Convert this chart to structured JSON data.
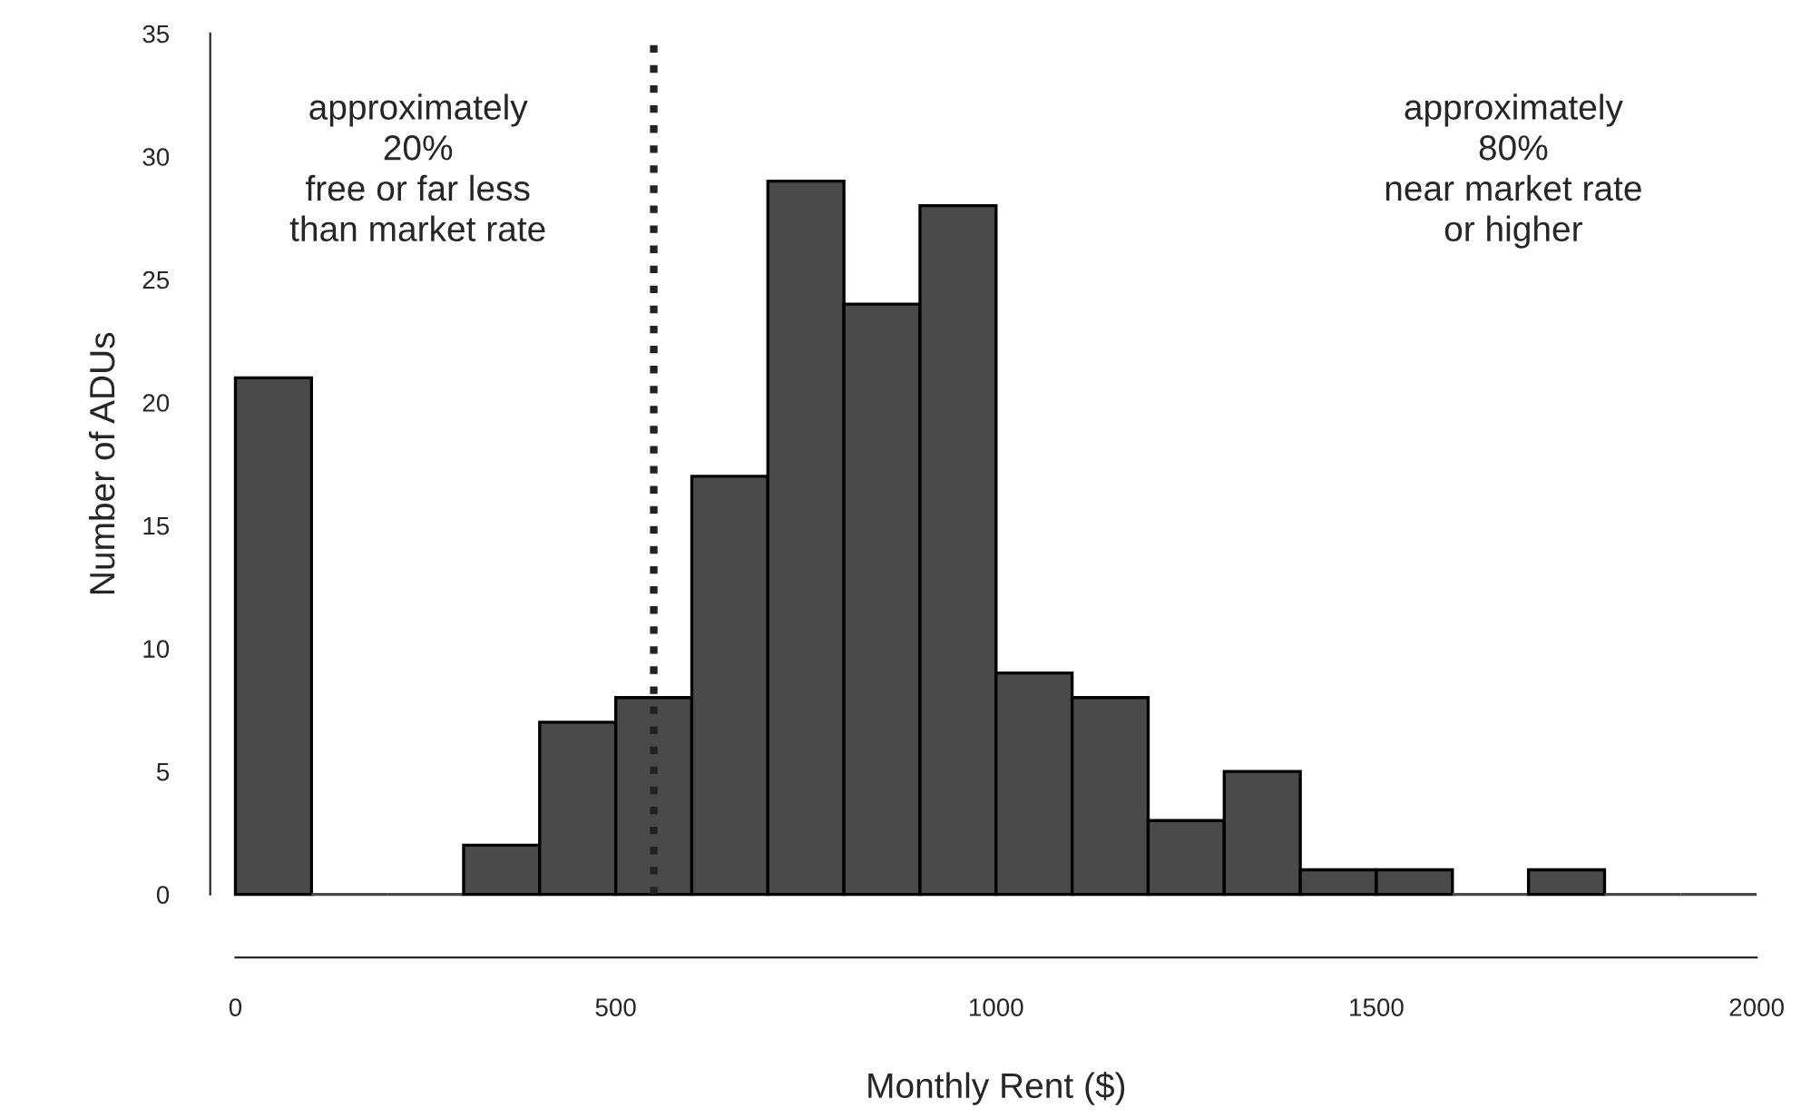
{
  "chart_data": {
    "type": "histogram",
    "xlabel": "Monthly Rent ($)",
    "ylabel": "Number of ADUs",
    "bins": [
      0,
      100,
      200,
      300,
      400,
      500,
      600,
      700,
      800,
      900,
      1000,
      1100,
      1200,
      1300,
      1400,
      1500,
      1600,
      1700,
      1800,
      1900,
      2000
    ],
    "values": [
      21,
      0,
      0,
      2,
      7,
      8,
      17,
      29,
      24,
      28,
      9,
      8,
      3,
      5,
      1,
      1,
      0,
      1,
      0,
      0
    ],
    "color": "#4a4a4a",
    "xlim": [
      0,
      2000
    ],
    "ylim": [
      0,
      35
    ],
    "xticks": [
      0,
      500,
      1000,
      1500,
      2000
    ],
    "yticks": [
      0,
      5,
      10,
      15,
      20,
      25,
      30,
      35
    ],
    "ref_lines": [
      {
        "axis": "x",
        "value": 550,
        "label": null,
        "color": "#222222",
        "line_style": "dotted"
      }
    ],
    "annotations": [
      "approximately\n20%\nfree or far less\nthan market rate",
      "approximately\n80%\nnear market rate\nor higher"
    ],
    "grid": false,
    "legend": false
  }
}
